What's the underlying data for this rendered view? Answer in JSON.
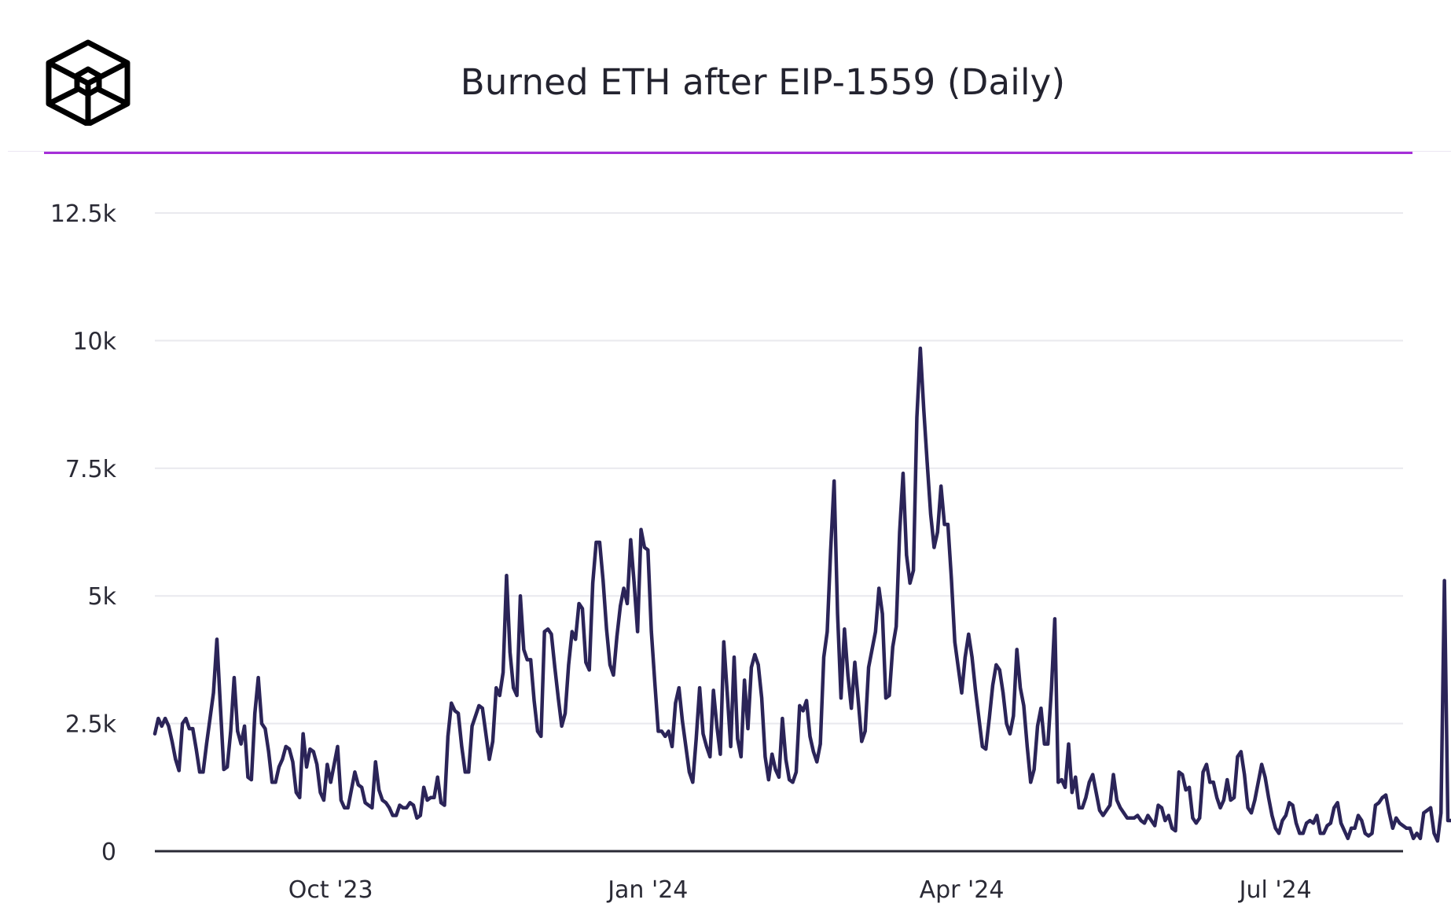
{
  "title": "Burned ETH after EIP-1559 (Daily)",
  "colors": {
    "line": "#2b2458",
    "accent_rule": "#a52ed8",
    "grid": "#e9e9ee",
    "axis": "#2a2a35"
  },
  "chart_data": {
    "type": "line",
    "title": "Burned ETH after EIP-1559 (Daily)",
    "xlabel": "",
    "ylabel": "",
    "ylim": [
      0,
      12500
    ],
    "yticks": [
      0,
      2500,
      5000,
      7500,
      10000,
      12500
    ],
    "ytick_labels": [
      "0",
      "2.5k",
      "5k",
      "7.5k",
      "10k",
      "12.5k"
    ],
    "xlim": [
      "2023-08-11",
      "2024-08-07"
    ],
    "xticks": [
      "2023-10-01",
      "2024-01-01",
      "2024-04-01",
      "2024-07-01"
    ],
    "xtick_labels": [
      "Oct '23",
      "Jan '24",
      "Apr '24",
      "Jul '24"
    ],
    "grid": true,
    "legend": "none",
    "series": [
      {
        "start_date": "2023-08-11",
        "interval": "1 day",
        "values": [
          2300,
          2600,
          2450,
          2600,
          2450,
          2150,
          1800,
          1580,
          2500,
          2600,
          2400,
          2400,
          2000,
          1550,
          1550,
          2100,
          2600,
          3100,
          4150,
          2850,
          1600,
          1650,
          2350,
          3400,
          2350,
          2100,
          2450,
          1450,
          1400,
          2700,
          3400,
          2500,
          2400,
          1950,
          1350,
          1350,
          1650,
          1800,
          2050,
          2000,
          1750,
          1150,
          1050,
          2300,
          1650,
          2000,
          1950,
          1700,
          1150,
          1000,
          1700,
          1350,
          1700,
          2050,
          1000,
          850,
          850,
          1200,
          1550,
          1300,
          1250,
          950,
          900,
          850,
          1750,
          1200,
          1000,
          950,
          850,
          700,
          700,
          900,
          850,
          850,
          950,
          900,
          650,
          700,
          1250,
          1000,
          1050,
          1050,
          1450,
          950,
          900,
          2250,
          2900,
          2750,
          2700,
          2050,
          1550,
          1550,
          2450,
          2650,
          2850,
          2800,
          2300,
          1800,
          2150,
          3200,
          3050,
          3500,
          5400,
          3900,
          3200,
          3050,
          5000,
          3950,
          3750,
          3750,
          2950,
          2350,
          2250,
          4300,
          4350,
          4250,
          3600,
          3000,
          2450,
          2700,
          3650,
          4300,
          4150,
          4850,
          4750,
          3700,
          3550,
          5250,
          6050,
          6050,
          5300,
          4350,
          3650,
          3450,
          4200,
          4800,
          5150,
          4850,
          6100,
          5250,
          4300,
          6300,
          5950,
          5900,
          4300,
          3300,
          2350,
          2350,
          2250,
          2350,
          2050,
          2900,
          3200,
          2550,
          2050,
          1550,
          1350,
          2200,
          3200,
          2300,
          2050,
          1850,
          3150,
          2450,
          1900,
          4100,
          3100,
          2050,
          3800,
          2200,
          1850,
          3350,
          2400,
          3600,
          3850,
          3650,
          3000,
          1850,
          1400,
          1900,
          1600,
          1450,
          2600,
          1800,
          1400,
          1350,
          1550,
          2850,
          2750,
          2950,
          2250,
          1950,
          1750,
          2100,
          3800,
          4300,
          5900,
          7250,
          4650,
          3000,
          4350,
          3450,
          2800,
          3700,
          2950,
          2150,
          2350,
          3600,
          3950,
          4300,
          5150,
          4650,
          3000,
          3050,
          4000,
          4400,
          6250,
          7400,
          5800,
          5250,
          5500,
          8500,
          9850,
          8650,
          7600,
          6600,
          5950,
          6250,
          7150,
          6400,
          6400,
          5350,
          4100,
          3600,
          3100,
          3800,
          4250,
          3800,
          3150,
          2600,
          2050,
          2000,
          2600,
          3250,
          3650,
          3550,
          3100,
          2500,
          2300,
          2650,
          3950,
          3200,
          2850,
          2050,
          1350,
          1600,
          2450,
          2800,
          2100,
          2100,
          3150,
          4550,
          1350,
          1400,
          1250,
          2100,
          1150,
          1450,
          850,
          850,
          1050,
          1350,
          1500,
          1150,
          800,
          700,
          800,
          900,
          1500,
          1000,
          850,
          750,
          650,
          650,
          650,
          700,
          600,
          550,
          700,
          600,
          500,
          900,
          850,
          600,
          700,
          450,
          400,
          1550,
          1500,
          1200,
          1250,
          650,
          550,
          650,
          1550,
          1700,
          1350,
          1350,
          1050,
          850,
          1000,
          1400,
          1000,
          1050,
          1850,
          1950,
          1500,
          850,
          750,
          1000,
          1350,
          1700,
          1450,
          1050,
          700,
          450,
          350,
          600,
          700,
          950,
          900,
          550,
          350,
          350,
          550,
          600,
          550,
          700,
          350,
          350,
          500,
          550,
          850,
          950,
          550,
          400,
          250,
          450,
          450,
          700,
          600,
          350,
          300,
          350,
          900,
          950,
          1050,
          1100,
          750,
          450,
          650,
          550,
          500,
          450,
          450,
          250,
          350,
          250,
          750,
          800,
          850,
          350,
          200,
          750,
          5300,
          600,
          600,
          650,
          350,
          150
        ]
      }
    ]
  }
}
